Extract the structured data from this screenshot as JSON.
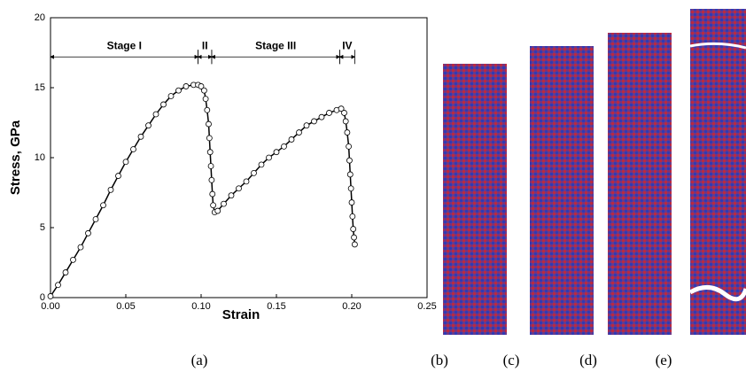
{
  "chart_data": {
    "type": "scatter",
    "xlabel": "Strain",
    "ylabel": "Stress, GPa",
    "xlim": [
      0,
      0.25
    ],
    "ylim": [
      0,
      20
    ],
    "xticks": [
      {
        "value": 0,
        "label": "0.00"
      },
      {
        "value": 0.05,
        "label": "0.05"
      },
      {
        "value": 0.1,
        "label": "0.10"
      },
      {
        "value": 0.15,
        "label": "0.15"
      },
      {
        "value": 0.2,
        "label": "0.20"
      },
      {
        "value": 0.25,
        "label": "0.25"
      }
    ],
    "yticks": [
      0,
      5,
      10,
      15,
      20
    ],
    "color": "#000000",
    "x": [
      0,
      0.005,
      0.01,
      0.015,
      0.02,
      0.025,
      0.03,
      0.035,
      0.04,
      0.045,
      0.05,
      0.055,
      0.06,
      0.065,
      0.07,
      0.075,
      0.08,
      0.085,
      0.09,
      0.095,
      0.098,
      0.1,
      0.102,
      0.103,
      0.104,
      0.105,
      0.1055,
      0.106,
      0.1065,
      0.107,
      0.1075,
      0.108,
      0.109,
      0.111,
      0.115,
      0.12,
      0.125,
      0.13,
      0.135,
      0.14,
      0.145,
      0.15,
      0.155,
      0.16,
      0.165,
      0.17,
      0.175,
      0.18,
      0.185,
      0.19,
      0.193,
      0.195,
      0.196,
      0.197,
      0.198,
      0.1985,
      0.199,
      0.1995,
      0.2,
      0.2005,
      0.201,
      0.2015,
      0.202
    ],
    "values": [
      0.1,
      0.9,
      1.8,
      2.7,
      3.6,
      4.6,
      5.6,
      6.6,
      7.7,
      8.7,
      9.7,
      10.6,
      11.5,
      12.3,
      13.1,
      13.8,
      14.4,
      14.8,
      15.1,
      15.2,
      15.2,
      15.1,
      14.8,
      14.2,
      13.4,
      12.4,
      11.4,
      10.4,
      9.4,
      8.4,
      7.4,
      6.6,
      6.1,
      6.2,
      6.7,
      7.3,
      7.8,
      8.3,
      8.9,
      9.5,
      10.0,
      10.4,
      10.8,
      11.3,
      11.8,
      12.3,
      12.6,
      12.9,
      13.2,
      13.4,
      13.5,
      13.2,
      12.6,
      11.8,
      10.8,
      9.8,
      8.8,
      7.8,
      6.8,
      5.8,
      4.9,
      4.3,
      3.8
    ],
    "annotations": [
      {
        "text": "Stage I",
        "x": [
          0,
          0.098
        ],
        "y": 17.2
      },
      {
        "text": "II",
        "x": [
          0.098,
          0.107
        ],
        "y": 17.2
      },
      {
        "text": "Stage III",
        "x": [
          0.107,
          0.192
        ],
        "y": 17.2
      },
      {
        "text": "IV",
        "x": [
          0.192,
          0.202
        ],
        "y": 17.2
      }
    ]
  },
  "panels": {
    "labels": [
      "(a)",
      "(b)",
      "(c)",
      "(d)",
      "(e)"
    ]
  }
}
